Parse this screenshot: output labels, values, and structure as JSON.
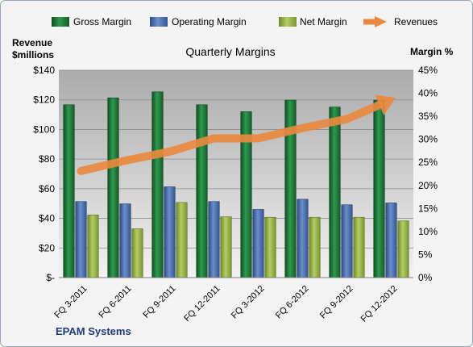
{
  "chart_data": {
    "type": "bar",
    "title": "Quarterly Margins",
    "company": "EPAM Systems",
    "categories": [
      "FQ 3-2011",
      "FQ 6-2011",
      "FQ 9-2011",
      "FQ 12-2011",
      "FQ 3-2012",
      "FQ 6-2012",
      "FQ 9-2012",
      "FQ 12-2012"
    ],
    "left_axis": {
      "label_line1": "Revenue",
      "label_line2": "$millions",
      "ylim": [
        0,
        140
      ],
      "ticks": [
        0,
        20,
        40,
        60,
        80,
        100,
        120,
        140
      ],
      "tick_labels": [
        "$-",
        "$20",
        "$40",
        "$60",
        "$80",
        "$100",
        "$120",
        "$140"
      ]
    },
    "right_axis": {
      "label": "Margin %",
      "ylim": [
        0,
        45
      ],
      "ticks": [
        0,
        5,
        10,
        15,
        20,
        25,
        30,
        35,
        40,
        45
      ],
      "tick_labels": [
        "0%",
        "5%",
        "10%",
        "15%",
        "20%",
        "25%",
        "30%",
        "35%",
        "40%",
        "45%"
      ]
    },
    "series": [
      {
        "name": "Gross Margin",
        "kind": "bar",
        "axis": "right",
        "color": "#1f7a3c",
        "values": [
          37.5,
          39.0,
          40.3,
          37.5,
          36.0,
          38.5,
          37.0,
          38.5
        ]
      },
      {
        "name": "Operating Margin",
        "kind": "bar",
        "axis": "right",
        "color": "#4a6fb0",
        "values": [
          16.5,
          16.0,
          19.7,
          16.5,
          14.8,
          17.0,
          15.8,
          16.2
        ]
      },
      {
        "name": "Net Margin",
        "kind": "bar",
        "axis": "right",
        "color": "#93b040",
        "values": [
          13.6,
          10.6,
          16.3,
          13.2,
          13.1,
          13.1,
          13.1,
          12.3
        ]
      },
      {
        "name": "Revenues",
        "kind": "line",
        "axis": "left",
        "color": "#e8893f",
        "values": [
          72,
          79,
          85,
          94,
          94,
          101,
          107,
          120
        ]
      }
    ],
    "grid": true,
    "legend_position": "top"
  }
}
